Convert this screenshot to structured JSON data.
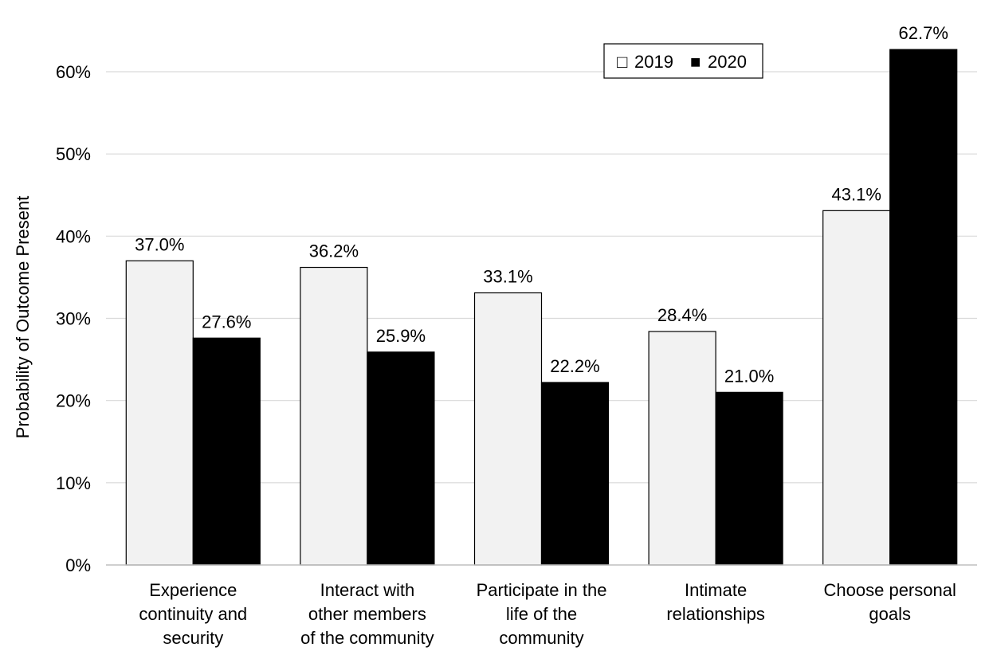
{
  "chart_data": {
    "type": "bar",
    "categories": [
      [
        "Experience",
        "continuity and",
        "security"
      ],
      [
        "Interact with",
        "other members",
        "of the community"
      ],
      [
        "Participate in the",
        "life of the",
        "community"
      ],
      [
        "Intimate",
        "relationships"
      ],
      [
        "Choose personal",
        "goals"
      ]
    ],
    "series": [
      {
        "name": "2019",
        "color": "#f2f2f2",
        "values": [
          37.0,
          36.2,
          33.1,
          28.4,
          43.1
        ],
        "labels": [
          "37.0%",
          "36.2%",
          "33.1%",
          "28.4%",
          "43.1%"
        ]
      },
      {
        "name": "2020",
        "color": "#000000",
        "values": [
          27.6,
          25.9,
          22.2,
          21.0,
          62.7
        ],
        "labels": [
          "27.6%",
          "25.9%",
          "22.2%",
          "21.0%",
          "62.7%"
        ]
      }
    ],
    "ylabel": "Probability of Outcome Present",
    "ylim": [
      0,
      60
    ],
    "yticks": [
      "0%",
      "10%",
      "20%",
      "30%",
      "40%",
      "50%",
      "60%"
    ],
    "grid": true,
    "legend_position": "top-right",
    "legend_markers": [
      "□",
      "■"
    ]
  }
}
